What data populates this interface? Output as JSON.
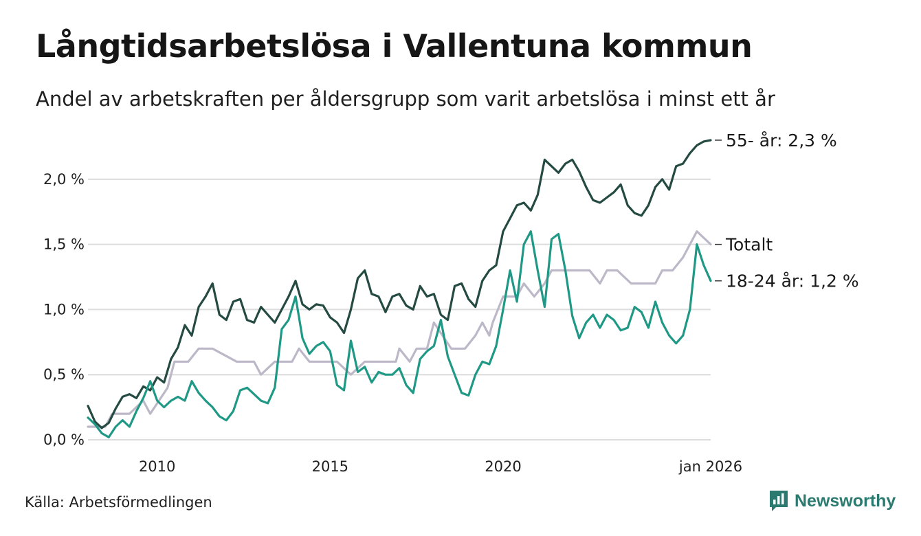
{
  "header": {
    "title": "Långtidsarbetslösa i Vallentuna kommun",
    "subtitle": "Andel av arbetskraften per åldersgrupp som varit arbetslösa i minst ett år"
  },
  "footer": {
    "source": "Källa: Arbetsförmedlingen",
    "brand": "Newsworthy"
  },
  "colors": {
    "series_55": "#244a42",
    "series_total": "#bdb8c8",
    "series_18_24": "#1f9986",
    "grid": "#dcdcdc",
    "brand": "#2b7a6f"
  },
  "chart_data": {
    "type": "line",
    "title": "Långtidsarbetslösa i Vallentuna kommun",
    "ylim": [
      0,
      2.4
    ],
    "xlim": [
      2008.0,
      2026.0
    ],
    "yticks": [
      0,
      0.5,
      1.0,
      1.5,
      2.0
    ],
    "ytick_labels": [
      "0,0 %",
      "0,5 %",
      "1,0 %",
      "1,5 %",
      "2,0 %"
    ],
    "xticks": [
      2010,
      2015,
      2020,
      2026.0
    ],
    "xtick_labels": [
      "2010",
      "2015",
      "2020",
      "jan 2026"
    ],
    "grid": true,
    "series": [
      {
        "name": "Totalt",
        "label": "Totalt",
        "color": "#bdb8c8",
        "x": [
          2008.0,
          2008.5,
          2008.7,
          2009.2,
          2009.6,
          2009.8,
          2010.3,
          2010.5,
          2010.9,
          2011.2,
          2011.6,
          2012.3,
          2012.8,
          2013.0,
          2013.4,
          2013.9,
          2014.1,
          2014.4,
          2014.9,
          2015.2,
          2015.6,
          2016.0,
          2016.5,
          2016.9,
          2017.0,
          2017.3,
          2017.5,
          2017.8,
          2018.0,
          2018.5,
          2018.9,
          2019.2,
          2019.4,
          2019.6,
          2019.7,
          2020.0,
          2020.4,
          2020.6,
          2020.9,
          2021.2,
          2021.4,
          2021.6,
          2021.9,
          2022.2,
          2022.5,
          2022.8,
          2023.0,
          2023.3,
          2023.7,
          2024.0,
          2024.2,
          2024.4,
          2024.6,
          2024.9,
          2025.2,
          2025.4,
          2025.6,
          2026.0
        ],
        "values": [
          0.1,
          0.1,
          0.2,
          0.2,
          0.3,
          0.2,
          0.4,
          0.6,
          0.6,
          0.7,
          0.7,
          0.6,
          0.6,
          0.5,
          0.6,
          0.6,
          0.7,
          0.6,
          0.6,
          0.6,
          0.5,
          0.6,
          0.6,
          0.6,
          0.7,
          0.6,
          0.7,
          0.7,
          0.9,
          0.7,
          0.7,
          0.8,
          0.9,
          0.8,
          0.9,
          1.1,
          1.1,
          1.2,
          1.1,
          1.2,
          1.3,
          1.3,
          1.3,
          1.3,
          1.3,
          1.2,
          1.3,
          1.3,
          1.2,
          1.2,
          1.2,
          1.2,
          1.3,
          1.3,
          1.4,
          1.5,
          1.6,
          1.5
        ]
      },
      {
        "name": "55- år",
        "label": "55- år: 2,3 %",
        "color": "#244a42",
        "x": [
          2008.0,
          2008.2,
          2008.4,
          2008.6,
          2008.8,
          2009.0,
          2009.2,
          2009.4,
          2009.6,
          2009.8,
          2010.0,
          2010.2,
          2010.4,
          2010.6,
          2010.8,
          2011.0,
          2011.2,
          2011.4,
          2011.6,
          2011.8,
          2012.0,
          2012.2,
          2012.4,
          2012.6,
          2012.8,
          2013.0,
          2013.2,
          2013.4,
          2013.6,
          2013.8,
          2014.0,
          2014.2,
          2014.4,
          2014.6,
          2014.8,
          2015.0,
          2015.2,
          2015.4,
          2015.6,
          2015.8,
          2016.0,
          2016.2,
          2016.4,
          2016.6,
          2016.8,
          2017.0,
          2017.2,
          2017.4,
          2017.6,
          2017.8,
          2018.0,
          2018.2,
          2018.4,
          2018.6,
          2018.8,
          2019.0,
          2019.2,
          2019.4,
          2019.6,
          2019.8,
          2020.0,
          2020.2,
          2020.4,
          2020.6,
          2020.8,
          2021.0,
          2021.2,
          2021.4,
          2021.6,
          2021.8,
          2022.0,
          2022.2,
          2022.4,
          2022.6,
          2022.8,
          2023.0,
          2023.2,
          2023.4,
          2023.6,
          2023.8,
          2024.0,
          2024.2,
          2024.4,
          2024.6,
          2024.8,
          2025.0,
          2025.2,
          2025.4,
          2025.6,
          2025.8,
          2026.0
        ],
        "values": [
          0.26,
          0.14,
          0.09,
          0.13,
          0.24,
          0.33,
          0.35,
          0.32,
          0.41,
          0.38,
          0.48,
          0.44,
          0.62,
          0.71,
          0.88,
          0.8,
          1.02,
          1.1,
          1.2,
          0.96,
          0.92,
          1.06,
          1.08,
          0.92,
          0.9,
          1.02,
          0.96,
          0.9,
          1.0,
          1.1,
          1.22,
          1.04,
          1.0,
          1.04,
          1.03,
          0.94,
          0.9,
          0.82,
          1.0,
          1.24,
          1.3,
          1.12,
          1.1,
          0.98,
          1.1,
          1.12,
          1.03,
          1.0,
          1.18,
          1.1,
          1.12,
          0.96,
          0.92,
          1.18,
          1.2,
          1.08,
          1.02,
          1.22,
          1.3,
          1.34,
          1.6,
          1.7,
          1.8,
          1.82,
          1.76,
          1.88,
          2.15,
          2.1,
          2.05,
          2.12,
          2.15,
          2.06,
          1.94,
          1.84,
          1.82,
          1.86,
          1.9,
          1.96,
          1.8,
          1.74,
          1.72,
          1.8,
          1.94,
          2.0,
          1.92,
          2.1,
          2.12,
          2.2,
          2.26,
          2.29,
          2.3
        ]
      },
      {
        "name": "18-24 år",
        "label": "18-24 år: 1,2 %",
        "color": "#1f9986",
        "x": [
          2008.0,
          2008.2,
          2008.4,
          2008.6,
          2008.8,
          2009.0,
          2009.2,
          2009.4,
          2009.6,
          2009.8,
          2010.0,
          2010.2,
          2010.4,
          2010.6,
          2010.8,
          2011.0,
          2011.2,
          2011.4,
          2011.6,
          2011.8,
          2012.0,
          2012.2,
          2012.4,
          2012.6,
          2012.8,
          2013.0,
          2013.2,
          2013.4,
          2013.6,
          2013.8,
          2014.0,
          2014.2,
          2014.4,
          2014.6,
          2014.8,
          2015.0,
          2015.2,
          2015.4,
          2015.6,
          2015.8,
          2016.0,
          2016.2,
          2016.4,
          2016.6,
          2016.8,
          2017.0,
          2017.2,
          2017.4,
          2017.6,
          2017.8,
          2018.0,
          2018.2,
          2018.4,
          2018.6,
          2018.8,
          2019.0,
          2019.2,
          2019.4,
          2019.6,
          2019.8,
          2020.0,
          2020.2,
          2020.4,
          2020.6,
          2020.8,
          2021.0,
          2021.2,
          2021.4,
          2021.6,
          2021.8,
          2022.0,
          2022.2,
          2022.4,
          2022.6,
          2022.8,
          2023.0,
          2023.2,
          2023.4,
          2023.6,
          2023.8,
          2024.0,
          2024.2,
          2024.4,
          2024.6,
          2024.8,
          2025.0,
          2025.2,
          2025.4,
          2025.6,
          2025.8,
          2026.0
        ],
        "values": [
          0.17,
          0.12,
          0.05,
          0.02,
          0.1,
          0.15,
          0.1,
          0.22,
          0.32,
          0.45,
          0.3,
          0.25,
          0.3,
          0.33,
          0.3,
          0.45,
          0.36,
          0.3,
          0.25,
          0.18,
          0.15,
          0.22,
          0.38,
          0.4,
          0.35,
          0.3,
          0.28,
          0.4,
          0.85,
          0.92,
          1.1,
          0.78,
          0.66,
          0.72,
          0.75,
          0.68,
          0.42,
          0.38,
          0.76,
          0.52,
          0.56,
          0.44,
          0.52,
          0.5,
          0.5,
          0.55,
          0.42,
          0.36,
          0.62,
          0.68,
          0.72,
          0.92,
          0.64,
          0.5,
          0.36,
          0.34,
          0.5,
          0.6,
          0.58,
          0.72,
          1.0,
          1.3,
          1.06,
          1.5,
          1.6,
          1.3,
          1.02,
          1.54,
          1.58,
          1.3,
          0.95,
          0.78,
          0.9,
          0.96,
          0.86,
          0.96,
          0.92,
          0.84,
          0.86,
          1.02,
          0.98,
          0.86,
          1.06,
          0.9,
          0.8,
          0.74,
          0.8,
          1.0,
          1.5,
          1.34,
          1.22
        ]
      }
    ]
  }
}
